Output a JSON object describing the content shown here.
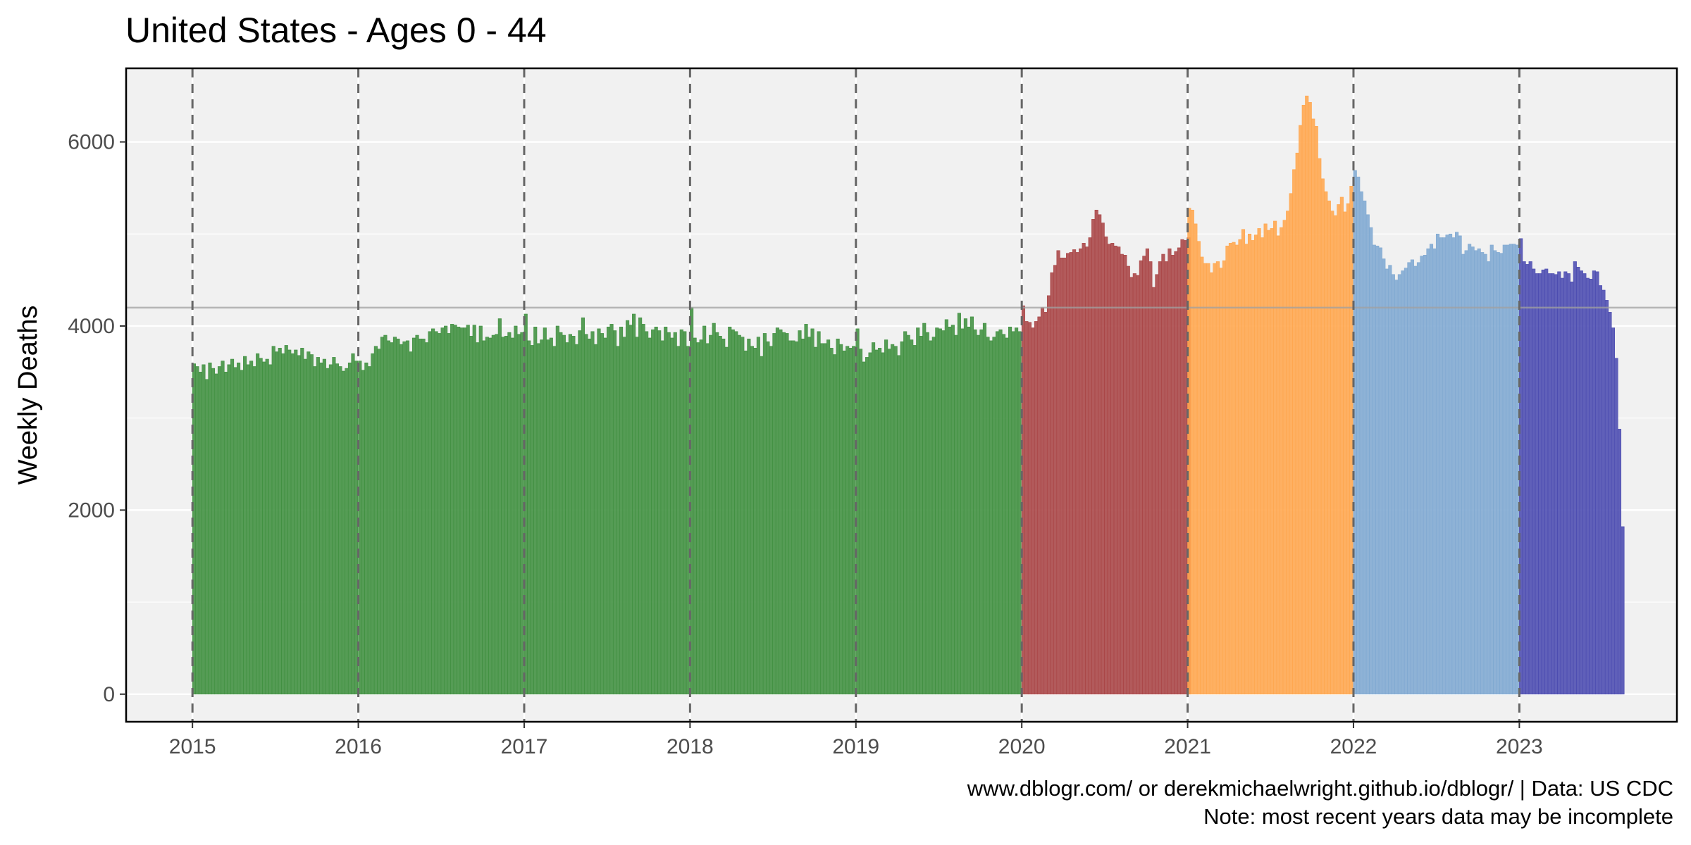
{
  "chart_data": {
    "type": "bar",
    "title": "United States  - Ages 0 - 44",
    "xlabel": "",
    "ylabel": "Weekly Deaths",
    "x_ticks": [
      "2015",
      "2016",
      "2017",
      "2018",
      "2019",
      "2020",
      "2021",
      "2022",
      "2023"
    ],
    "y_ticks": [
      "0",
      "2000",
      "4000",
      "6000"
    ],
    "xlim": [
      2014.6,
      2023.95
    ],
    "ylim": [
      -300,
      6800
    ],
    "grid": true,
    "year_boundaries": [
      2015,
      2016,
      2017,
      2018,
      2019,
      2020,
      2021,
      2022,
      2023
    ],
    "reference_line": 4200,
    "series": [
      {
        "year": 2015,
        "color": "#3f8f3f",
        "values": [
          3590,
          3560,
          3500,
          3580,
          3420,
          3600,
          3540,
          3480,
          3560,
          3620,
          3500,
          3580,
          3640,
          3550,
          3600,
          3520,
          3670,
          3580,
          3620,
          3560,
          3700,
          3650,
          3610,
          3640,
          3580,
          3780,
          3720,
          3760,
          3700,
          3790,
          3740,
          3700,
          3740,
          3680,
          3760,
          3640,
          3720,
          3690,
          3560,
          3660,
          3600,
          3640,
          3540,
          3580,
          3660,
          3590,
          3560,
          3510,
          3540,
          3600,
          3700,
          3620
        ]
      },
      {
        "year": 2016,
        "color": "#3f8f3f",
        "values": [
          3620,
          3520,
          3600,
          3560,
          3700,
          3780,
          3750,
          3880,
          3900,
          3840,
          3820,
          3880,
          3860,
          3800,
          3830,
          3840,
          3720,
          3870,
          3900,
          3860,
          3860,
          3820,
          3940,
          3970,
          3940,
          3920,
          3980,
          4000,
          3920,
          4020,
          4010,
          3990,
          3980,
          3980,
          4010,
          3890,
          4010,
          3820,
          4000,
          3840,
          3880,
          3870,
          3900,
          3910,
          4080,
          3880,
          3890,
          3930,
          3870,
          4000,
          3910,
          3930
        ]
      },
      {
        "year": 2017,
        "color": "#3f8f3f",
        "values": [
          4130,
          3840,
          3790,
          3990,
          3810,
          3850,
          3980,
          3850,
          3870,
          3780,
          4000,
          3930,
          3900,
          3820,
          3910,
          3890,
          3800,
          3950,
          4090,
          3910,
          3860,
          3940,
          3800,
          3970,
          3920,
          3870,
          3990,
          4020,
          3950,
          3780,
          3990,
          3880,
          4060,
          4010,
          4130,
          3880,
          4090,
          4020,
          3940,
          3870,
          3960,
          3990,
          3950,
          3840,
          3990,
          3930,
          3870,
          3930,
          3780,
          3960,
          3940,
          3780
        ]
      },
      {
        "year": 2018,
        "color": "#3f8f3f",
        "values": [
          4200,
          3870,
          3820,
          3850,
          4000,
          3810,
          3900,
          4030,
          3930,
          3890,
          3860,
          3770,
          3990,
          3960,
          3940,
          3900,
          3880,
          3730,
          3860,
          3780,
          3760,
          3880,
          3670,
          3920,
          3830,
          3780,
          3920,
          3980,
          3960,
          3930,
          3920,
          3840,
          3840,
          3830,
          3950,
          3860,
          4020,
          3880,
          3970,
          3770,
          3940,
          3810,
          3810,
          3850,
          3760,
          3690,
          3860,
          3800,
          3730,
          3780,
          3760,
          3780
        ]
      },
      {
        "year": 2019,
        "color": "#3f8f3f",
        "values": [
          3970,
          3750,
          3610,
          3660,
          3710,
          3820,
          3740,
          3760,
          3710,
          3850,
          3750,
          3800,
          3780,
          3680,
          3830,
          3940,
          3900,
          3850,
          3790,
          3980,
          3890,
          4030,
          3930,
          3840,
          3880,
          3980,
          3970,
          3950,
          4070,
          3990,
          4010,
          3900,
          4140,
          3970,
          4080,
          3990,
          4100,
          3960,
          3900,
          3960,
          4030,
          3880,
          3840,
          3880,
          3940,
          3960,
          3910,
          3870,
          3990,
          3940,
          3980,
          3940
        ]
      },
      {
        "year": 2020,
        "color": "#a94445",
        "values": [
          4220,
          4050,
          4040,
          3980,
          4050,
          4100,
          4200,
          4150,
          4330,
          4580,
          4660,
          4820,
          4740,
          4740,
          4790,
          4800,
          4830,
          4800,
          4840,
          4900,
          4860,
          4960,
          5160,
          5260,
          5210,
          5120,
          4970,
          4890,
          4900,
          4870,
          4860,
          4780,
          4770,
          4650,
          4530,
          4570,
          4550,
          4710,
          4760,
          4840,
          4700,
          4420,
          4560,
          4700,
          4780,
          4700,
          4840,
          4770,
          4810,
          4850,
          4940,
          4930,
          4960
        ]
      },
      {
        "year": 2021,
        "color": "#ffa64d",
        "values": [
          5280,
          5260,
          5110,
          4920,
          4750,
          4680,
          4680,
          4580,
          4680,
          4700,
          4630,
          4710,
          4870,
          4900,
          4910,
          4880,
          4940,
          5050,
          4890,
          5000,
          4930,
          4990,
          5060,
          4960,
          5110,
          5040,
          5060,
          5140,
          4980,
          5070,
          5150,
          5250,
          5440,
          5700,
          5880,
          6180,
          6400,
          6500,
          6430,
          6250,
          6170,
          5820,
          5600,
          5460,
          5360,
          5250,
          5200,
          5320,
          5400,
          5240,
          5330,
          5520
        ]
      },
      {
        "year": 2022,
        "color": "#7fa8d1",
        "values": [
          5690,
          5620,
          5460,
          5360,
          5210,
          5070,
          4880,
          4870,
          4850,
          4730,
          4620,
          4660,
          4560,
          4500,
          4560,
          4600,
          4630,
          4690,
          4720,
          4650,
          4690,
          4760,
          4770,
          4840,
          4890,
          4840,
          5000,
          4960,
          4960,
          4990,
          5000,
          4960,
          5020,
          4980,
          4780,
          4820,
          4890,
          4860,
          4820,
          4840,
          4800,
          4780,
          4700,
          4880,
          4820,
          4800,
          4790,
          4880,
          4880,
          4890,
          4890,
          4880
        ]
      },
      {
        "year": 2023,
        "color": "#4b4bb0",
        "values": [
          4950,
          4700,
          4670,
          4700,
          4620,
          4570,
          4570,
          4610,
          4620,
          4570,
          4570,
          4560,
          4590,
          4520,
          4590,
          4570,
          4480,
          4700,
          4640,
          4600,
          4570,
          4520,
          4510,
          4600,
          4590,
          4440,
          4390,
          4280,
          4150,
          3980,
          3650,
          2880,
          1820
        ]
      }
    ]
  },
  "captions": {
    "line1": "www.dblogr.com/ or derekmichaelwright.github.io/dblogr/ | Data: US CDC",
    "line2": "Note: most recent years data may be incomplete"
  }
}
